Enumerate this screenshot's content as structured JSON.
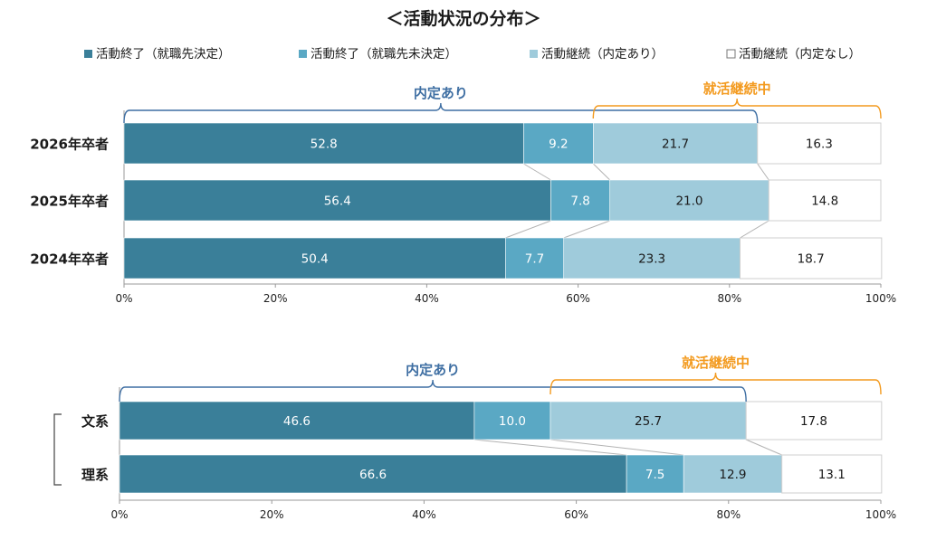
{
  "title": "＜活動状況の分布＞",
  "legend": [
    {
      "label": "活動終了（就職先決定）",
      "color": "#3a7f99"
    },
    {
      "label": "活動終了（就職先未決定）",
      "color": "#5aa8c4"
    },
    {
      "label": "活動継続（内定あり）",
      "color": "#9fcbdb"
    },
    {
      "label": "活動継続（内定なし）",
      "color": "#ffffff"
    }
  ],
  "brackets": {
    "naitei": {
      "label": "内定あり",
      "color": "#3f6fa3"
    },
    "katsudo": {
      "label": "就活継続中",
      "color": "#f39a1e"
    }
  },
  "chart_data": [
    {
      "type": "bar",
      "orientation": "horizontal-stacked-100",
      "categories": [
        "2026年卒者",
        "2025年卒者",
        "2024年卒者"
      ],
      "series": [
        {
          "name": "活動終了（就職先決定）",
          "values": [
            52.8,
            56.4,
            50.4
          ]
        },
        {
          "name": "活動終了（就職先未決定）",
          "values": [
            9.2,
            7.8,
            7.7
          ]
        },
        {
          "name": "活動継続（内定あり）",
          "values": [
            21.7,
            21.0,
            23.3
          ]
        },
        {
          "name": "活動継続（内定なし）",
          "values": [
            16.3,
            14.8,
            18.7
          ]
        }
      ],
      "xticks": [
        "0%",
        "20%",
        "40%",
        "60%",
        "80%",
        "100%"
      ],
      "xlim": [
        0,
        100
      ]
    },
    {
      "type": "bar",
      "orientation": "horizontal-stacked-100",
      "categories": [
        "文系",
        "理系"
      ],
      "series": [
        {
          "name": "活動終了（就職先決定）",
          "values": [
            46.6,
            66.6
          ]
        },
        {
          "name": "活動終了（就職先未決定）",
          "values": [
            10.0,
            7.5
          ]
        },
        {
          "name": "活動継続（内定あり）",
          "values": [
            25.7,
            12.9
          ]
        },
        {
          "name": "活動継続（内定なし）",
          "values": [
            17.8,
            13.1
          ]
        }
      ],
      "xticks": [
        "0%",
        "20%",
        "40%",
        "60%",
        "80%",
        "100%"
      ],
      "xlim": [
        0,
        100
      ]
    }
  ]
}
